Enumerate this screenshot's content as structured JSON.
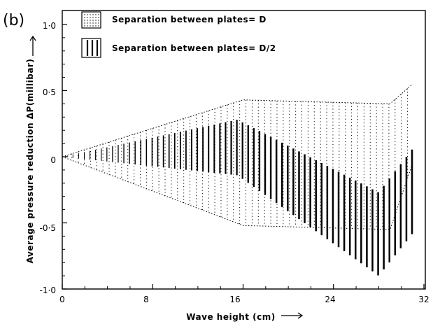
{
  "chart_data": {
    "type": "area",
    "panel_label": "(b)",
    "xlabel": "Wave height (cm)",
    "ylabel": "Average pressure reduction ΔP(millibar)",
    "xlim": [
      0,
      32
    ],
    "ylim": [
      -1.0,
      1.0
    ],
    "x_ticks": [
      "0",
      "8",
      "16",
      "24",
      "32"
    ],
    "y_ticks": [
      "1·0",
      "0·5",
      "0",
      "-0·5",
      "-1·0"
    ],
    "grid": false,
    "legend_position": "top-left",
    "legend": [
      {
        "label": "Separation between plates= D",
        "pattern": "dotted"
      },
      {
        "label": "Separation between plates= D/2",
        "pattern": "vertical-lines"
      }
    ],
    "series": [
      {
        "name": "Separation between plates= D",
        "pattern": "dotted",
        "x": [
          0,
          16,
          29,
          31
        ],
        "upper": [
          0,
          0.43,
          0.4,
          0.55
        ],
        "lower": [
          0,
          -0.52,
          -0.55,
          -0.05
        ]
      },
      {
        "name": "Separation between plates= D/2",
        "pattern": "vertical-lines",
        "x": [
          0,
          15.5,
          28,
          31
        ],
        "upper": [
          0,
          0.28,
          -0.27,
          0.06
        ],
        "lower": [
          0,
          -0.14,
          -0.9,
          -0.58
        ]
      }
    ]
  }
}
